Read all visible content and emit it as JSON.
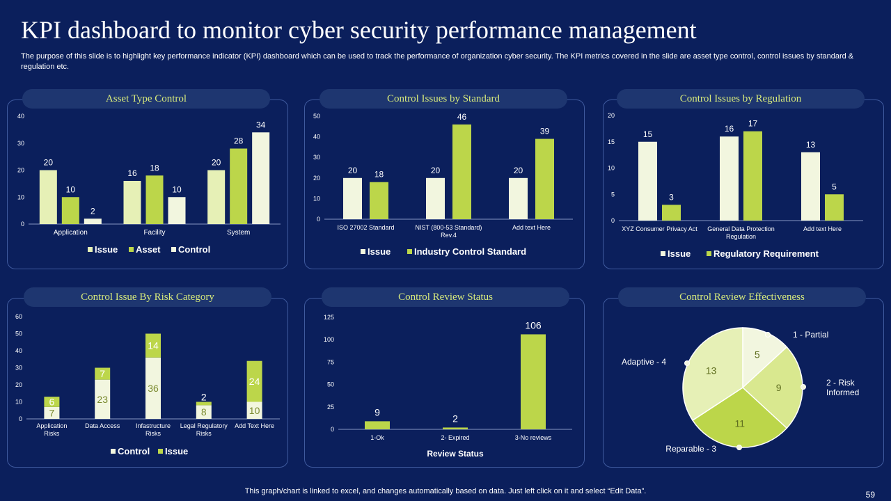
{
  "title": "KPI dashboard to monitor cyber security performance management",
  "description": "The purpose of this slide is to highlight key performance indicator (KPI) dashboard which can be used to track the performance of organization cyber security. The KPI metrics covered in the slide are asset type control, control issues by standard & regulation etc.",
  "footer": "This graph/chart is linked to excel,  and changes automatically based on data. Just left click on it and select “Edit Data”.",
  "page_number": "59",
  "colors": {
    "background": "#0b1f5c",
    "title_pill": "#1e3670",
    "accent_text": "#d7ea7c",
    "light_bar": "#f2f6df",
    "pale_bar": "#e6f0b6",
    "green_bar": "#bcd64a"
  },
  "chart_data": [
    {
      "id": "asset",
      "type": "bar",
      "title": "Asset Type Control",
      "categories": [
        "Application",
        "Facility",
        "System"
      ],
      "series": [
        {
          "name": "Issue",
          "values": [
            20,
            16,
            20
          ],
          "color": "#e6f0b6"
        },
        {
          "name": "Asset",
          "values": [
            10,
            18,
            28
          ],
          "color": "#bcd64a"
        },
        {
          "name": "Control",
          "values": [
            2,
            10,
            34
          ],
          "color": "#f2f6df"
        }
      ],
      "ylim": [
        0,
        40
      ],
      "yticks": [
        0,
        10,
        20,
        30,
        40
      ],
      "legend": "bottom"
    },
    {
      "id": "standard",
      "type": "bar",
      "title": "Control Issues by Standard",
      "categories": [
        "ISO 27002 Standard",
        "NIST (800-53 Standard) Rev.4",
        "Add text Here"
      ],
      "series": [
        {
          "name": "Issue",
          "values": [
            20,
            20,
            20
          ],
          "color": "#f2f6df"
        },
        {
          "name": "Industry Control Standard",
          "values": [
            18,
            46,
            39
          ],
          "color": "#bcd64a"
        }
      ],
      "ylim": [
        0,
        50
      ],
      "yticks": [
        0,
        10,
        20,
        30,
        40,
        50
      ],
      "legend": "bottom"
    },
    {
      "id": "regulation",
      "type": "bar",
      "title": "Control Issues by Regulation",
      "categories": [
        "XYZ Consumer Privacy Act",
        "General Data Protection Regulation",
        "Add text Here"
      ],
      "series": [
        {
          "name": "Issue",
          "values": [
            15,
            16,
            13
          ],
          "color": "#f2f6df"
        },
        {
          "name": "Regulatory Requirement",
          "values": [
            3,
            17,
            5
          ],
          "color": "#bcd64a"
        }
      ],
      "ylim": [
        0,
        20
      ],
      "yticks": [
        0,
        5,
        10,
        15,
        20
      ],
      "legend": "bottom"
    },
    {
      "id": "risk",
      "type": "bar",
      "stacked": true,
      "title": "Control Issue By Risk Category",
      "categories": [
        "Application Risks",
        "Data Access",
        "Infastructure Risks",
        "Legal Regulatory Risks",
        "Add Text Here"
      ],
      "series": [
        {
          "name": "Control",
          "values": [
            7,
            23,
            36,
            8,
            10
          ],
          "color": "#f2f6df"
        },
        {
          "name": "Issue",
          "values": [
            6,
            7,
            14,
            2,
            24
          ],
          "color": "#bcd64a"
        }
      ],
      "ylim": [
        0,
        60
      ],
      "yticks": [
        0,
        10,
        20,
        30,
        40,
        50,
        60
      ],
      "legend": "bottom"
    },
    {
      "id": "review",
      "type": "bar",
      "title": "Control Review Status",
      "categories": [
        "1-Ok",
        "2- Expired",
        "3-No reviews"
      ],
      "series": [
        {
          "values": [
            9,
            2,
            106
          ],
          "color": "#bcd64a"
        }
      ],
      "xlabel": "Review Status",
      "ylim": [
        0,
        125
      ],
      "yticks": [
        0,
        25,
        50,
        75,
        100,
        125
      ]
    },
    {
      "id": "effect",
      "type": "pie",
      "title": "Control Review Effectiveness",
      "slices": [
        {
          "label": "1 - Partial",
          "value": 5,
          "color": "#f2f6df"
        },
        {
          "label": "2 - Risk Informed",
          "value": 9,
          "color": "#d9e88f"
        },
        {
          "label": "Reparable  - 3",
          "value": 11,
          "color": "#bcd64a"
        },
        {
          "label": "Adaptive - 4",
          "value": 13,
          "color": "#e6f0b6"
        }
      ]
    }
  ]
}
